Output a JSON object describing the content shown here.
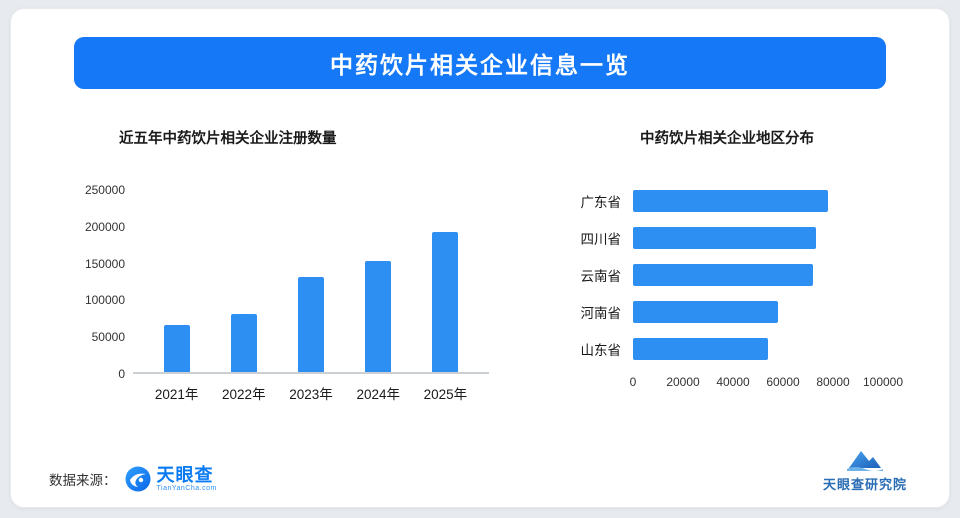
{
  "page": {
    "title": "中药饮片相关企业信息一览"
  },
  "colors": {
    "banner": "#1578f6",
    "bar": "#2e8ff2",
    "logo_blue": "#0b7bf4"
  },
  "chart_data": [
    {
      "type": "bar",
      "title": "近五年中药饮片相关企业注册数量",
      "categories": [
        "2021年",
        "2022年",
        "2023年",
        "2024年",
        "2025年"
      ],
      "values": [
        65000,
        80000,
        130000,
        153000,
        193000
      ],
      "xlabel": "",
      "ylabel": "",
      "ylim": [
        0,
        250000
      ],
      "yticks": [
        0,
        50000,
        100000,
        150000,
        200000,
        250000
      ],
      "grid": false,
      "legend": false
    },
    {
      "type": "bar",
      "orientation": "horizontal",
      "title": "中药饮片相关企业地区分布",
      "categories": [
        "广东省",
        "四川省",
        "云南省",
        "河南省",
        "山东省"
      ],
      "values": [
        78000,
        73000,
        72000,
        58000,
        54000
      ],
      "xlabel": "",
      "ylabel": "",
      "xlim": [
        0,
        100000
      ],
      "xticks": [
        0,
        20000,
        40000,
        60000,
        80000,
        100000
      ],
      "grid": false,
      "legend": false
    }
  ],
  "footer": {
    "source_label": "数据来源：",
    "logo_text": "天眼查",
    "logo_sub": "TianYanCha.com",
    "research_text": "天眼查研究院"
  }
}
